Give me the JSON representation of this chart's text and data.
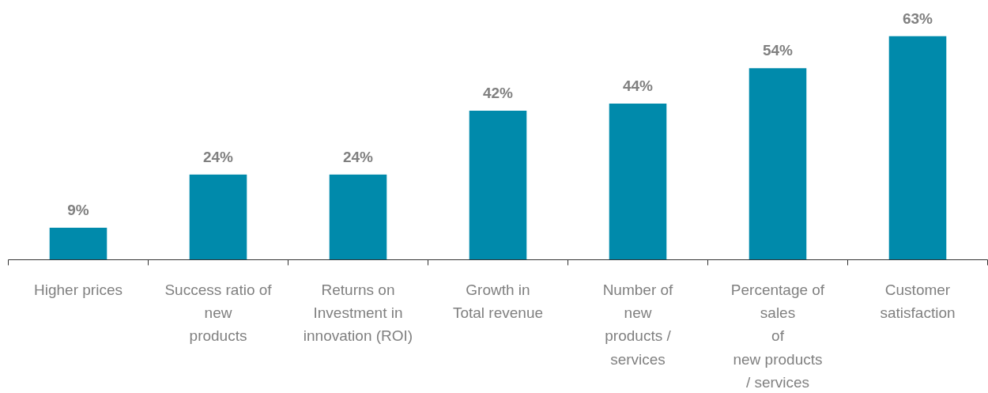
{
  "chart_data": {
    "type": "bar",
    "categories": [
      "Higher prices",
      "Success ratio of\nnew\nproducts",
      "Returns on\nInvestment in\ninnovation (ROI)",
      "Growth in\nTotal revenue",
      "Number of\nnew\nproducts /\nservices",
      "Percentage of\nsales\nof\nnew products\n/ services",
      "Customer\nsatisfaction"
    ],
    "values": [
      9,
      24,
      24,
      42,
      44,
      54,
      63
    ],
    "color": "#008aab",
    "value_labels": [
      "9%",
      "24%",
      "24%",
      "42%",
      "44%",
      "54%",
      "63%"
    ],
    "grid": false,
    "tick_labels": "x"
  }
}
